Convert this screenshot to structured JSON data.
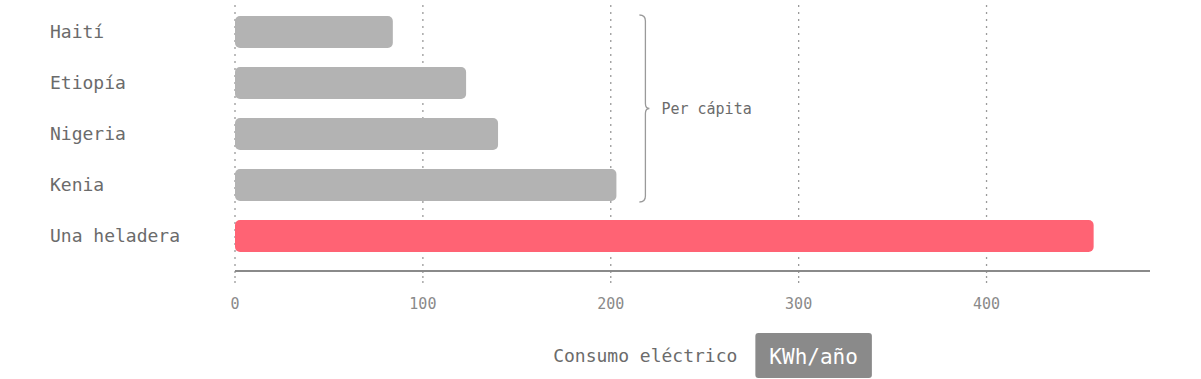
{
  "chart_data": {
    "type": "bar",
    "orientation": "horizontal",
    "categories": [
      "Haití",
      "Etiopía",
      "Nigeria",
      "Kenia",
      "Una heladera"
    ],
    "values": [
      84,
      123,
      140,
      203,
      457
    ],
    "colors": [
      "#b3b3b3",
      "#b3b3b3",
      "#b3b3b3",
      "#b3b3b3",
      "#ff6374"
    ],
    "xlim": [
      0,
      487
    ],
    "xticks": [
      0,
      100,
      200,
      300,
      400
    ],
    "grid": true,
    "xlabel": "Consumo eléctrico",
    "x_unit": "KWh/año",
    "annotation": {
      "text": "Per cápita",
      "categories": [
        "Haití",
        "Etiopía",
        "Nigeria",
        "Kenia"
      ]
    }
  }
}
